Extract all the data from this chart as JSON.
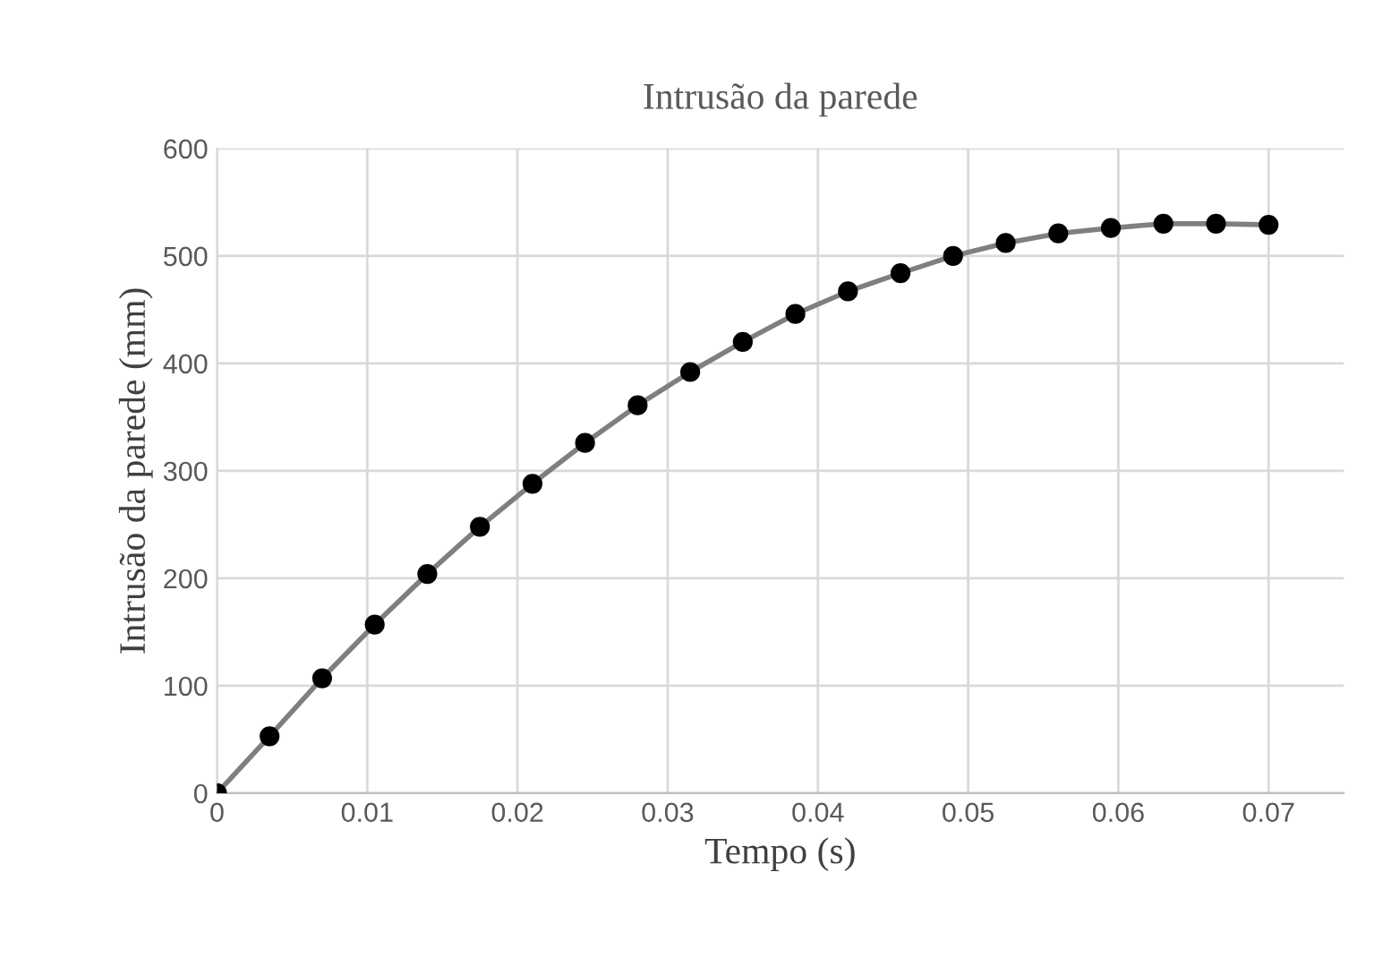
{
  "chart_data": {
    "type": "line",
    "title": "Intrusão da parede",
    "xlabel": "Tempo (s)",
    "ylabel": "Intrusão da parede (mm)",
    "x": [
      0,
      0.0035,
      0.007,
      0.0105,
      0.014,
      0.0175,
      0.021,
      0.0245,
      0.028,
      0.0315,
      0.035,
      0.0385,
      0.042,
      0.0455,
      0.049,
      0.0525,
      0.056,
      0.0595,
      0.063,
      0.0665,
      0.07
    ],
    "series": [
      {
        "color": "#7f7f7f",
        "values": [
          0,
          53,
          107,
          157,
          204,
          248,
          288,
          326,
          361,
          392,
          420,
          446,
          467,
          484,
          500,
          512,
          521,
          526,
          530,
          530,
          529
        ]
      }
    ],
    "xlim": [
      0,
      0.075
    ],
    "xticks": [
      0,
      0.01,
      0.02,
      0.03,
      0.04,
      0.05,
      0.06,
      0.07
    ],
    "ylim": [
      0,
      600
    ],
    "yticks": [
      0,
      100,
      200,
      300,
      400,
      500,
      600
    ],
    "grid": true,
    "marker": "circle",
    "line_style": "solid"
  }
}
